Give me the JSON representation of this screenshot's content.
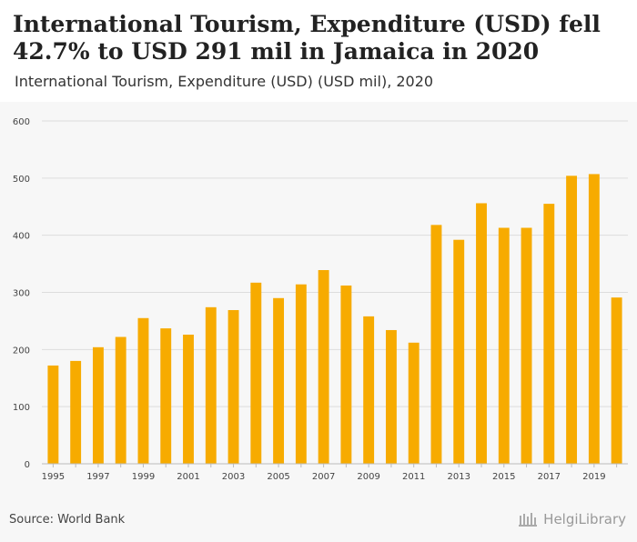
{
  "header": {
    "title": "International Tourism, Expenditure (USD) fell 42.7% to USD 291 mil in Jamaica in 2020",
    "subtitle": "International Tourism, Expenditure (USD) (USD mil), 2020"
  },
  "footer": {
    "source": "Source: World Bank",
    "brand": "HelgiLibrary"
  },
  "colors": {
    "bar": "#f7ab00",
    "grid": "#dddddd",
    "background": "#f7f7f7"
  },
  "chart_data": {
    "type": "bar",
    "title": "International Tourism, Expenditure (USD) fell 42.7% to USD 291 mil in Jamaica in 2020",
    "subtitle": "International Tourism, Expenditure (USD) (USD mil), 2020",
    "xlabel": "",
    "ylabel": "",
    "ylim": [
      0,
      600
    ],
    "yticks": [
      0,
      100,
      200,
      300,
      400,
      500,
      600
    ],
    "categories": [
      "1995",
      "1996",
      "1997",
      "1998",
      "1999",
      "2000",
      "2001",
      "2002",
      "2003",
      "2004",
      "2005",
      "2006",
      "2007",
      "2008",
      "2009",
      "2010",
      "2011",
      "2012",
      "2013",
      "2014",
      "2015",
      "2016",
      "2017",
      "2018",
      "2019",
      "2020"
    ],
    "xtick_labels": [
      "1995",
      "",
      "1997",
      "",
      "1999",
      "",
      "2001",
      "",
      "2003",
      "",
      "2005",
      "",
      "2007",
      "",
      "2009",
      "",
      "2011",
      "",
      "2013",
      "",
      "2015",
      "",
      "2017",
      "",
      "2019",
      ""
    ],
    "values": [
      172,
      180,
      204,
      222,
      255,
      237,
      226,
      274,
      269,
      317,
      290,
      314,
      339,
      312,
      258,
      234,
      212,
      418,
      392,
      456,
      413,
      413,
      455,
      504,
      507,
      291
    ],
    "grid": true
  }
}
